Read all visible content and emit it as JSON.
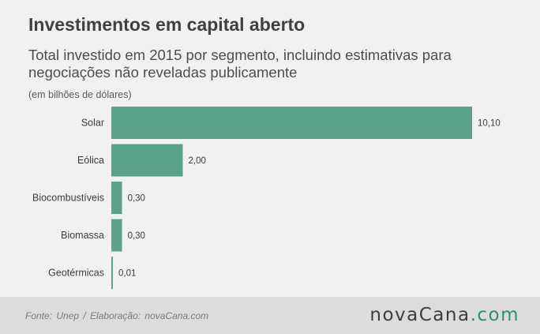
{
  "title": "Investimentos em capital aberto",
  "subtitle": "Total investido em 2015 por segmento, incluindo estimativas para negociações não reveladas publicamente",
  "unit_note": "(em bilhões de dólares)",
  "colors": {
    "bar": "#5aa38a",
    "footer_bg": "#dcdcdc",
    "logo_accent": "#2f8f6f"
  },
  "chart_data": {
    "type": "bar",
    "orientation": "horizontal",
    "categories": [
      "Solar",
      "Eólica",
      "Biocombustíveis",
      "Biomassa",
      "Geotérmicas"
    ],
    "values": [
      10.1,
      2.0,
      0.3,
      0.3,
      0.01
    ],
    "value_labels": [
      "10,10",
      "2,00",
      "0,30",
      "0,30",
      "0,01"
    ],
    "xlim": [
      0,
      10.1
    ],
    "grid": false
  },
  "footer": {
    "source": "Fonte: Unep / Elaboração: novaCana.com",
    "logo_part1": "nova",
    "logo_part2": "Cana",
    "logo_part3": ".com"
  }
}
